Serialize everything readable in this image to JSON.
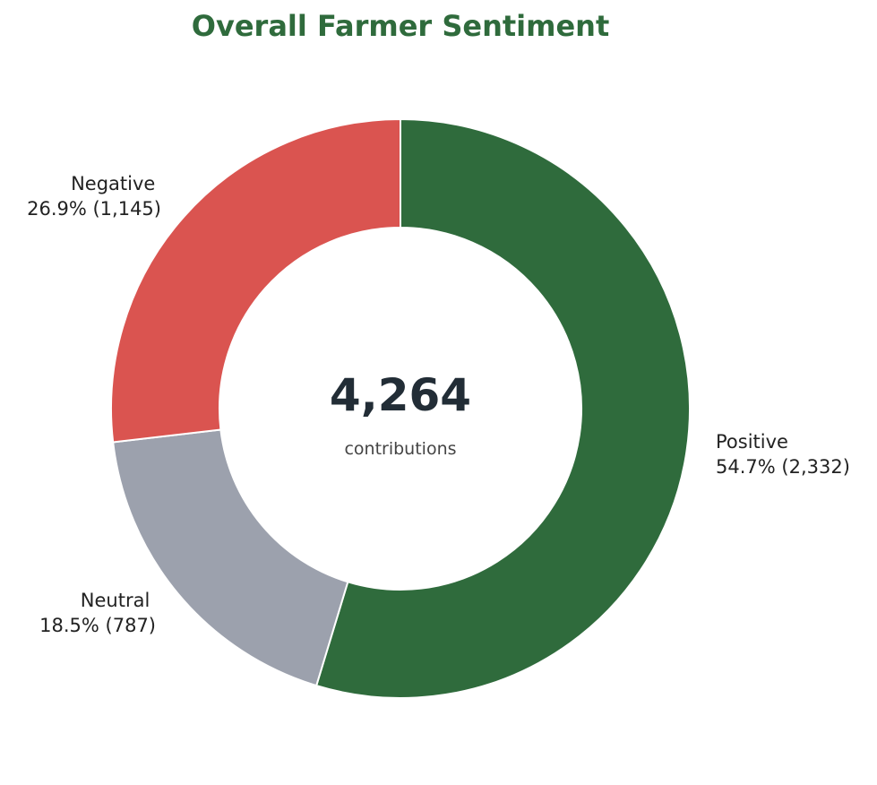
{
  "chart_data": {
    "type": "pie",
    "variant": "donut",
    "title": "Overall Farmer Sentiment",
    "total": 4264,
    "total_label": "4,264",
    "center_caption": "contributions",
    "start": "top",
    "direction": "clockwise",
    "slices": [
      {
        "label": "Positive",
        "count": 2332,
        "percent": 54.7,
        "detail": "54.7% (2,332)",
        "color": "#2f6b3c"
      },
      {
        "label": "Neutral",
        "count": 787,
        "percent": 18.5,
        "detail": "18.5% (787)",
        "color": "#9ca1ad"
      },
      {
        "label": "Negative",
        "count": 1145,
        "percent": 26.9,
        "detail": "26.9% (1,145)",
        "color": "#da5450"
      }
    ]
  }
}
